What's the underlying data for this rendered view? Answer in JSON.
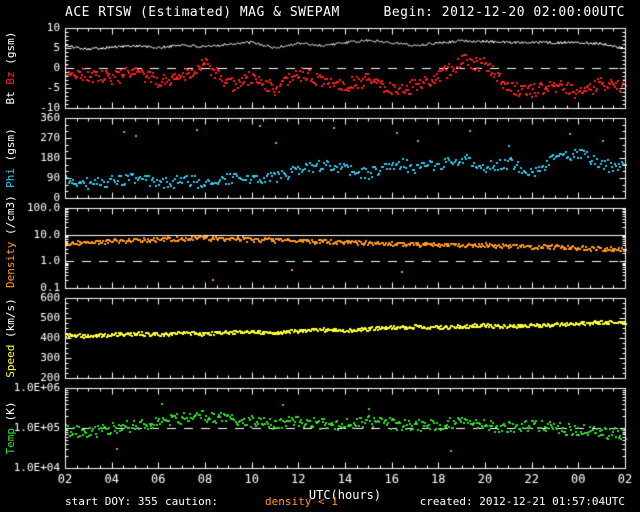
{
  "header": {
    "title": "ACE RTSW (Estimated) MAG & SWEPAM",
    "begin": "Begin: 2012-12-20 02:00:00UTC"
  },
  "footer": {
    "start_doy": "start DOY: 355",
    "caution_label": "caution:",
    "caution_value": "density < 1",
    "created": "created: 2012-12-21 01:57:04UTC"
  },
  "colors": {
    "background": "#000000",
    "frame": "#ffffff",
    "bt": "#ffffff",
    "bz": "#ff2020",
    "phi": "#33ccee",
    "density": "#ff9820",
    "speed": "#ffff33",
    "temp": "#33dd33"
  },
  "chart_data": {
    "type": "scatter",
    "title": "ACE RTSW (Estimated) MAG & SWEPAM",
    "xlabel": "UTC(hours)",
    "x_start_hour": 2,
    "x_span_hours": 24,
    "xticks": [
      {
        "t": 0,
        "label": "02"
      },
      {
        "t": 2,
        "label": "04"
      },
      {
        "t": 4,
        "label": "06"
      },
      {
        "t": 6,
        "label": "08"
      },
      {
        "t": 8,
        "label": "10"
      },
      {
        "t": 10,
        "label": "12"
      },
      {
        "t": 12,
        "label": "14"
      },
      {
        "t": 14,
        "label": "16"
      },
      {
        "t": 16,
        "label": "18"
      },
      {
        "t": 18,
        "label": "20"
      },
      {
        "t": 20,
        "label": "22"
      },
      {
        "t": 22,
        "label": "00"
      },
      {
        "t": 24,
        "label": "02"
      }
    ],
    "x_minor_step": 0.5,
    "panels": [
      {
        "name": "mag",
        "ylabel_parts": [
          {
            "text": "Bt ",
            "color": "#ffffff"
          },
          {
            "text": "Bz",
            "color": "#ff2020"
          },
          {
            "text": " (gsm)",
            "color": "#ffffff"
          }
        ],
        "scale": "linear",
        "ylim": [
          -10,
          10
        ],
        "minor_step": 1,
        "yticks": [
          {
            "v": 10,
            "label": "10"
          },
          {
            "v": 5,
            "label": "5"
          },
          {
            "v": 0,
            "label": "0"
          },
          {
            "v": -5,
            "label": "-5"
          },
          {
            "v": -10,
            "label": "-10"
          }
        ],
        "reflines": [
          {
            "v": 0,
            "style": "dashed"
          }
        ],
        "series": [
          {
            "name": "Bt",
            "color": "#ffffff",
            "style": "line",
            "noise": 0.35,
            "n": 560,
            "seed": 101,
            "keyframes": [
              5.5,
              4.8,
              5.2,
              5.6,
              5.0,
              5.8,
              5.2,
              6.0,
              6.4,
              5.0,
              6.2,
              5.6,
              6.3,
              6.9,
              6.4,
              5.6,
              6.3,
              6.8,
              6.6,
              6.4,
              6.5,
              6.3,
              6.4,
              6.1,
              4.8
            ]
          },
          {
            "name": "Bz",
            "color": "#ff2020",
            "style": "dots",
            "noise": 1.7,
            "n": 520,
            "seed": 202,
            "keyframes": [
              -0.5,
              -1.8,
              -2.2,
              -1.0,
              -3.2,
              -1.5,
              1.2,
              -4.2,
              -2.2,
              -5.2,
              -1.2,
              -3.0,
              -4.0,
              -2.6,
              -5.0,
              -4.4,
              -2.0,
              2.2,
              0.8,
              -4.8,
              -5.4,
              -4.2,
              -5.8,
              -3.6,
              -4.2
            ]
          }
        ],
        "outliers": []
      },
      {
        "name": "phi",
        "ylabel_parts": [
          {
            "text": "Phi",
            "color": "#33ccee"
          },
          {
            "text": " (gsm)",
            "color": "#ffffff"
          }
        ],
        "scale": "linear",
        "ylim": [
          0,
          360
        ],
        "minor_step": 30,
        "yticks": [
          {
            "v": 360,
            "label": "360"
          },
          {
            "v": 270,
            "label": "270"
          },
          {
            "v": 180,
            "label": "180"
          },
          {
            "v": 90,
            "label": "90"
          },
          {
            "v": 0,
            "label": "0"
          }
        ],
        "reflines": [],
        "series": [
          {
            "name": "Phi",
            "color": "#33ccee",
            "style": "dots",
            "noise": 26,
            "n": 400,
            "seed": 303,
            "keyframes": [
              80,
              70,
              78,
              92,
              68,
              82,
              72,
              92,
              88,
              102,
              122,
              152,
              132,
              112,
              162,
              142,
              152,
              182,
              142,
              162,
              125,
              182,
              205,
              152,
              138
            ]
          }
        ],
        "outliers": [
          {
            "color": "#33ccee",
            "points": [
              [
                2.5,
                300
              ],
              [
                3.0,
                282
              ],
              [
                5.6,
                312
              ],
              [
                8.3,
                330
              ],
              [
                9.0,
                250
              ],
              [
                11.5,
                318
              ],
              [
                14.2,
                298
              ],
              [
                15.1,
                260
              ],
              [
                17.3,
                308
              ],
              [
                19.0,
                240
              ],
              [
                21.6,
                292
              ],
              [
                23.0,
                262
              ]
            ]
          }
        ]
      },
      {
        "name": "density",
        "ylabel_parts": [
          {
            "text": "Density",
            "color": "#ff9820"
          },
          {
            "text": " (/cm3)",
            "color": "#ffffff"
          }
        ],
        "scale": "log",
        "ylim": [
          0.1,
          100
        ],
        "yticks": [
          {
            "v": 100,
            "label": "100.0"
          },
          {
            "v": 10,
            "label": "10.0"
          },
          {
            "v": 1,
            "label": "1.0"
          },
          {
            "v": 0.1,
            "label": "0.1"
          }
        ],
        "reflines": [
          {
            "v": 10,
            "style": "solid"
          },
          {
            "v": 1,
            "style": "dashed"
          }
        ],
        "series": [
          {
            "name": "Density",
            "color": "#ff9820",
            "style": "dots",
            "noise": 0.08,
            "n": 480,
            "seed": 404,
            "keyframes": [
              5.0,
              5.4,
              6.0,
              6.6,
              7.2,
              7.6,
              8.0,
              7.4,
              7.0,
              6.6,
              6.2,
              6.0,
              5.6,
              5.2,
              5.0,
              4.6,
              4.4,
              4.2,
              4.4,
              4.0,
              3.8,
              3.6,
              3.4,
              3.2,
              3.0
            ]
          }
        ],
        "outliers": [
          {
            "color": "#ff9820",
            "points": [
              [
                6.3,
                0.22
              ],
              [
                9.7,
                0.5
              ],
              [
                14.4,
                0.45
              ]
            ]
          }
        ]
      },
      {
        "name": "speed",
        "ylabel_parts": [
          {
            "text": "Speed",
            "color": "#ffff33"
          },
          {
            "text": " (km/s)",
            "color": "#ffffff"
          }
        ],
        "scale": "linear",
        "ylim": [
          200,
          600
        ],
        "minor_step": 25,
        "yticks": [
          {
            "v": 600,
            "label": "600"
          },
          {
            "v": 500,
            "label": "500"
          },
          {
            "v": 400,
            "label": "400"
          },
          {
            "v": 300,
            "label": "300"
          },
          {
            "v": 200,
            "label": "200"
          }
        ],
        "reflines": [],
        "series": [
          {
            "name": "Speed",
            "color": "#ffff33",
            "style": "dots",
            "noise": 9,
            "n": 540,
            "seed": 505,
            "keyframes": [
              420,
              414,
              420,
              426,
              420,
              430,
              424,
              432,
              436,
              430,
              440,
              446,
              440,
              450,
              456,
              460,
              456,
              462,
              466,
              460,
              466,
              470,
              476,
              482,
              480
            ]
          }
        ],
        "outliers": []
      },
      {
        "name": "temp",
        "ylabel_parts": [
          {
            "text": "Temp",
            "color": "#33dd33"
          },
          {
            "text": " (K)",
            "color": "#ffffff"
          }
        ],
        "scale": "log",
        "ylim": [
          10000.0,
          1000000.0
        ],
        "yticks": [
          {
            "v": 1000000.0,
            "label": "1.0E+06"
          },
          {
            "v": 100000.0,
            "label": "1.0E+05"
          },
          {
            "v": 10000.0,
            "label": "1.0E+04"
          }
        ],
        "reflines": [
          {
            "v": 100000.0,
            "style": "dashed"
          }
        ],
        "series": [
          {
            "name": "Temp",
            "color": "#33dd33",
            "style": "dots",
            "noise": 0.15,
            "n": 470,
            "seed": 606,
            "keyframes": [
              90000.0,
              80000.0,
              105000.0,
              120000.0,
              155000.0,
              185000.0,
              210000.0,
              165000.0,
              150000.0,
              140000.0,
              150000.0,
              130000.0,
              140000.0,
              155000.0,
              130000.0,
              120000.0,
              130000.0,
              140000.0,
              120000.0,
              110000.0,
              130000.0,
              105000.0,
              90000.0,
              82000.0,
              76000.0
            ]
          }
        ],
        "outliers": [
          {
            "color": "#33dd33",
            "points": [
              [
                4.1,
                420000.0
              ],
              [
                9.3,
                400000.0
              ],
              [
                13.0,
                320000.0
              ],
              [
                2.2,
                32000.0
              ],
              [
                16.5,
                28000.0
              ]
            ]
          }
        ]
      }
    ]
  }
}
